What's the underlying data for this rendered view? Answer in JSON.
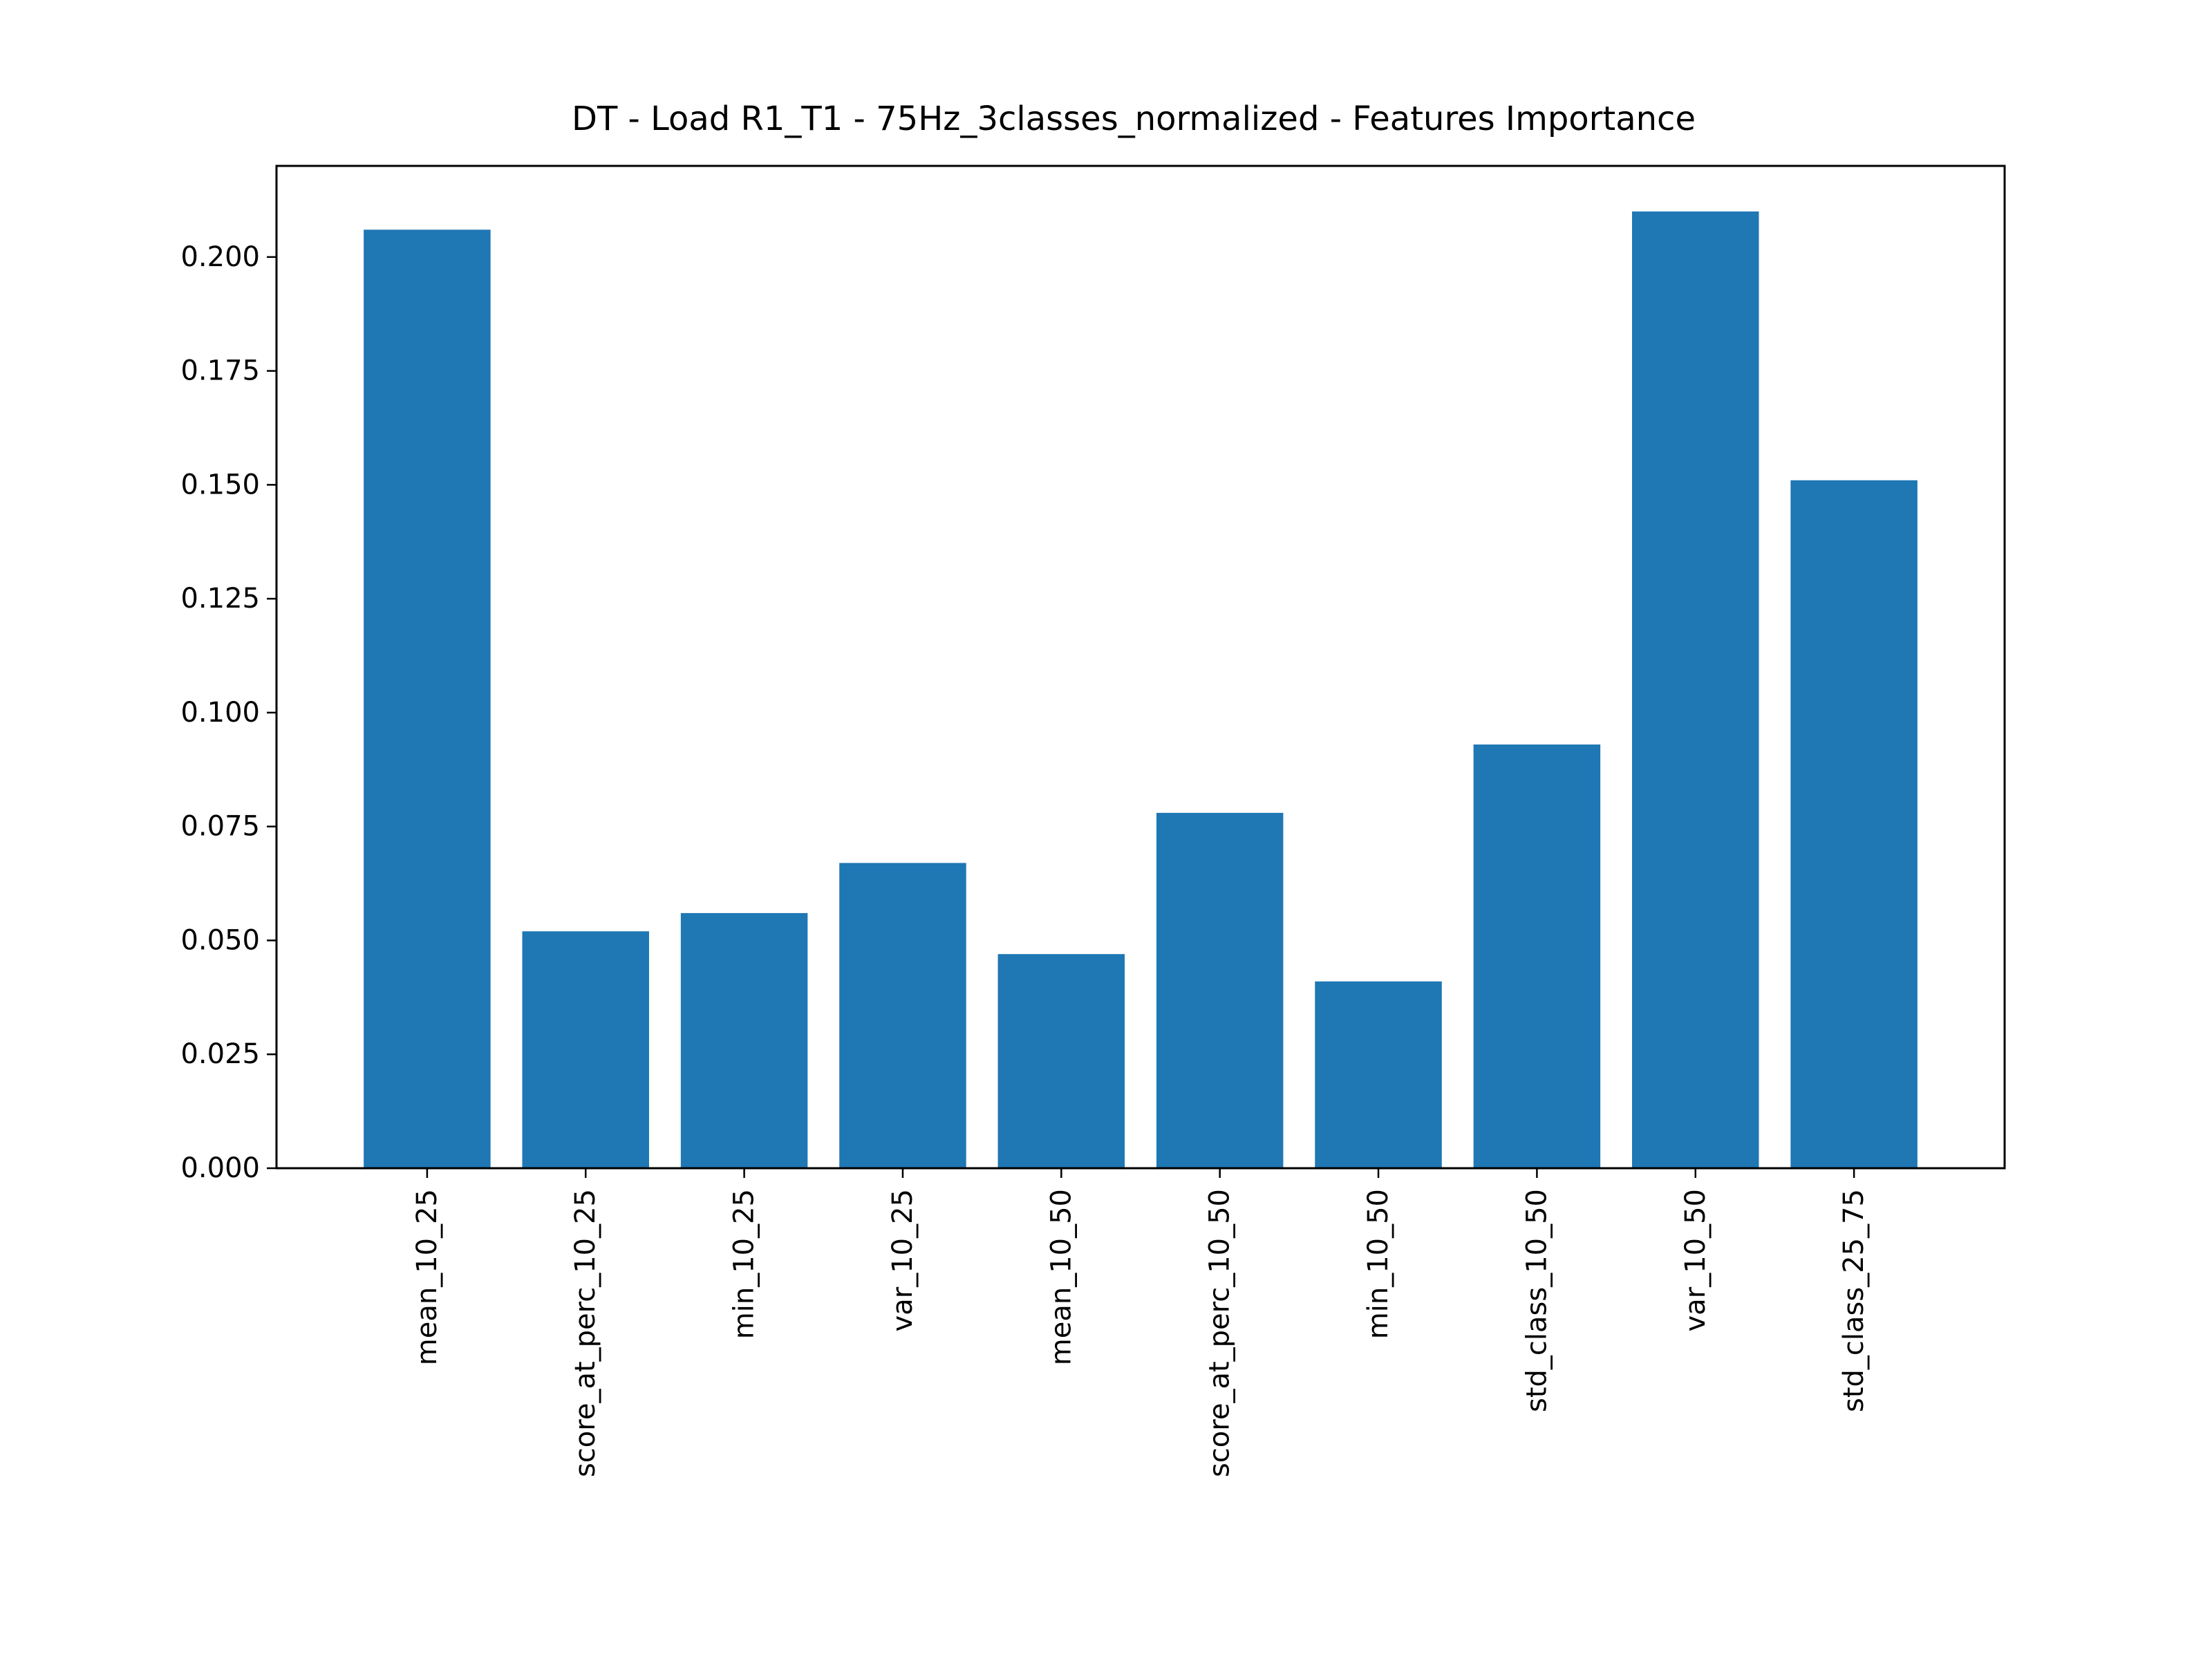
{
  "chart_data": {
    "type": "bar",
    "title": "DT - Load R1_T1 - 75Hz_3classes_normalized - Features Importance",
    "xlabel": "",
    "ylabel": "",
    "categories": [
      "mean_10_25",
      "score_at_perc_10_25",
      "min_10_25",
      "var_10_25",
      "mean_10_50",
      "score_at_perc_10_50",
      "min_10_50",
      "std_class_10_50",
      "var_10_50",
      "std_class_25_75"
    ],
    "values": [
      0.206,
      0.052,
      0.056,
      0.067,
      0.047,
      0.078,
      0.041,
      0.093,
      0.21,
      0.151
    ],
    "ylim": [
      0,
      0.22
    ],
    "yticks": [
      "0.000",
      "0.025",
      "0.050",
      "0.075",
      "0.100",
      "0.125",
      "0.150",
      "0.175",
      "0.200"
    ],
    "grid": false,
    "bar_color": "#1f77b4"
  }
}
